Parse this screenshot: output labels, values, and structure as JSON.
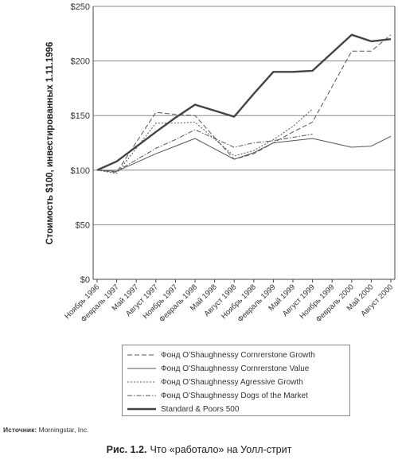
{
  "chart_data": {
    "type": "line",
    "ylabel": "Стоимость $100, инвестированных 1.11.1996",
    "ylim": [
      0,
      250
    ],
    "y_ticks": [
      "$0",
      "$50",
      "$100",
      "$150",
      "$200",
      "$250"
    ],
    "y_tick_values": [
      0,
      50,
      100,
      150,
      200,
      250
    ],
    "grid": "horizontal",
    "x": [
      "Ноябрь 1996",
      "Февраль 1997",
      "Май 1997",
      "Август 1997",
      "Ноябрь 1997",
      "Февраль 1998",
      "Май 1998",
      "Август 1998",
      "Ноябрь 1998",
      "Февраль 1999",
      "Май 1999",
      "Август 1999",
      "Ноябрь 1999",
      "Февраль 2000",
      "Май 2000",
      "Август 2000"
    ],
    "series": [
      {
        "name": "Фонд O'Shaughnessy Cornrerstone Growth",
        "style": "dashed",
        "values": [
          100,
          98,
          null,
          153,
          151,
          150,
          null,
          110,
          115,
          125,
          135,
          144,
          null,
          209,
          209,
          224
        ]
      },
      {
        "name": "Фонд O'Shaughnessy Cornrerstone Value",
        "style": "solid-thin",
        "values": [
          100,
          99,
          null,
          115,
          122,
          129,
          null,
          110,
          116,
          125,
          127,
          129,
          null,
          121,
          122,
          131
        ]
      },
      {
        "name": "Фонд O'Shaughnessy Agressive Growth",
        "style": "dotted",
        "values": [
          100,
          97,
          null,
          143,
          143,
          144,
          null,
          113,
          118,
          128,
          140,
          156,
          null,
          null,
          null,
          null
        ]
      },
      {
        "name": "Фонд O'Shaughnessy Dogs of the Market",
        "style": "dashdot",
        "values": [
          100,
          99,
          null,
          120,
          128,
          137,
          null,
          121,
          125,
          127,
          130,
          133,
          null,
          null,
          null,
          null
        ]
      },
      {
        "name": "Standard & Poors 500",
        "style": "solid-thick",
        "values": [
          100,
          108,
          null,
          135,
          148,
          160,
          null,
          149,
          170,
          190,
          190,
          191,
          null,
          224,
          218,
          220
        ]
      }
    ]
  },
  "source": {
    "label": "Источник:",
    "text": "Morningstar, Inc."
  },
  "caption": {
    "number": "Рис. 1.2.",
    "text": "Что «работало» на Уолл-стрит"
  }
}
